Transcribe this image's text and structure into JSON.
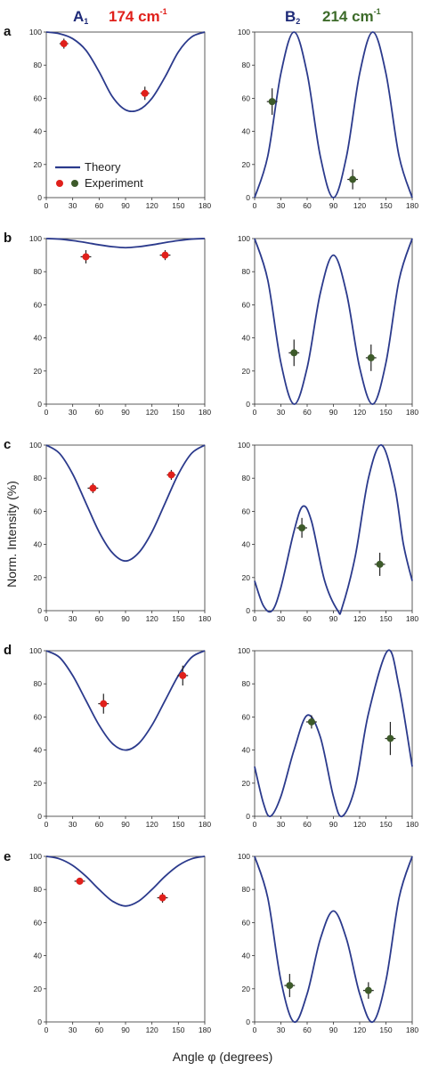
{
  "header": {
    "left_mode": "A",
    "left_sub": "1",
    "left_freq": "174 cm",
    "left_exp": "-1",
    "right_mode": "B",
    "right_sub": "2",
    "right_freq": "214 cm",
    "right_exp": "-1"
  },
  "ylabel": "Norm. Intensity (%)",
  "xlabel": "Angle φ (degrees)",
  "legend": {
    "theory": "Theory",
    "experiment": "Experiment"
  },
  "colors": {
    "theory": "#2b3a8c",
    "a1_points": "#e0201b",
    "b2_points": "#3d5a2a",
    "a1_header": "#e0201b",
    "b2_header": "#3d6b2a",
    "mode_header": "#1e2a78"
  },
  "chart_data": [
    {
      "panel": "a",
      "column": "A1",
      "type": "line+scatter",
      "xlim": [
        0,
        180
      ],
      "ylim": [
        0,
        100
      ],
      "xticks": [
        0,
        30,
        60,
        90,
        120,
        150,
        180
      ],
      "yticks": [
        0,
        20,
        40,
        60,
        80,
        100
      ],
      "theory": {
        "x": [
          0,
          15,
          30,
          45,
          60,
          75,
          90,
          105,
          120,
          135,
          150,
          165,
          180
        ],
        "y": [
          100,
          99,
          96,
          89,
          76,
          61,
          53,
          53,
          60,
          73,
          88,
          97,
          100
        ]
      },
      "experiment": [
        {
          "x": 20,
          "y": 93,
          "xerr": 5,
          "yerr": 3
        },
        {
          "x": 112,
          "y": 63,
          "xerr": 5,
          "yerr": 4
        }
      ]
    },
    {
      "panel": "a",
      "column": "B2",
      "type": "line+scatter",
      "xlim": [
        0,
        180
      ],
      "ylim": [
        0,
        100
      ],
      "xticks": [
        0,
        30,
        60,
        90,
        120,
        150,
        180
      ],
      "yticks": [
        0,
        20,
        40,
        60,
        80,
        100
      ],
      "theory": {
        "x": [
          0,
          15,
          30,
          45,
          60,
          75,
          90,
          105,
          120,
          135,
          150,
          165,
          180
        ],
        "y": [
          0,
          25,
          75,
          100,
          75,
          25,
          0,
          25,
          75,
          100,
          75,
          25,
          0
        ]
      },
      "experiment": [
        {
          "x": 20,
          "y": 58,
          "xerr": 6,
          "yerr": 8
        },
        {
          "x": 112,
          "y": 11,
          "xerr": 6,
          "yerr": 6
        }
      ]
    },
    {
      "panel": "b",
      "column": "A1",
      "type": "line+scatter",
      "xlim": [
        0,
        180
      ],
      "ylim": [
        0,
        100
      ],
      "xticks": [
        0,
        30,
        60,
        90,
        120,
        150,
        180
      ],
      "yticks": [
        0,
        20,
        40,
        60,
        80,
        100
      ],
      "theory": {
        "x": [
          0,
          15,
          30,
          45,
          60,
          75,
          90,
          105,
          120,
          135,
          150,
          165,
          180
        ],
        "y": [
          100,
          99.7,
          98.8,
          97.6,
          96.2,
          95.1,
          94.5,
          95.1,
          96.2,
          97.6,
          98.8,
          99.7,
          100
        ]
      },
      "experiment": [
        {
          "x": 45,
          "y": 89,
          "xerr": 6,
          "yerr": 4
        },
        {
          "x": 135,
          "y": 90,
          "xerr": 6,
          "yerr": 3
        }
      ]
    },
    {
      "panel": "b",
      "column": "B2",
      "type": "line+scatter",
      "xlim": [
        0,
        180
      ],
      "ylim": [
        0,
        100
      ],
      "xticks": [
        0,
        30,
        60,
        90,
        120,
        150,
        180
      ],
      "yticks": [
        0,
        20,
        40,
        60,
        80,
        100
      ],
      "theory": {
        "x": [
          0,
          15,
          30,
          45,
          60,
          75,
          90,
          105,
          120,
          135,
          150,
          165,
          180
        ],
        "y": [
          100,
          75,
          25,
          0,
          22,
          67,
          90,
          67,
          22,
          0,
          25,
          75,
          100
        ]
      },
      "experiment": [
        {
          "x": 45,
          "y": 31,
          "xerr": 6,
          "yerr": 8
        },
        {
          "x": 133,
          "y": 28,
          "xerr": 6,
          "yerr": 8
        }
      ]
    },
    {
      "panel": "c",
      "column": "A1",
      "type": "line+scatter",
      "xlim": [
        0,
        180
      ],
      "ylim": [
        0,
        100
      ],
      "xticks": [
        0,
        30,
        60,
        90,
        120,
        150,
        180
      ],
      "yticks": [
        0,
        20,
        40,
        60,
        80,
        100
      ],
      "theory": {
        "x": [
          0,
          15,
          30,
          45,
          60,
          75,
          90,
          105,
          120,
          135,
          150,
          165,
          180
        ],
        "y": [
          100,
          95,
          82.5,
          65,
          47.5,
          35,
          30,
          35,
          47.5,
          65,
          82.5,
          95,
          100
        ]
      },
      "experiment": [
        {
          "x": 53,
          "y": 74,
          "xerr": 6,
          "yerr": 3
        },
        {
          "x": 142,
          "y": 82,
          "xerr": 5,
          "yerr": 3
        }
      ]
    },
    {
      "panel": "c",
      "column": "B2",
      "type": "line+scatter",
      "xlim": [
        0,
        180
      ],
      "ylim": [
        0,
        100
      ],
      "xticks": [
        0,
        30,
        60,
        90,
        120,
        150,
        180
      ],
      "yticks": [
        0,
        20,
        40,
        60,
        80,
        100
      ],
      "theory": {
        "x": [
          0,
          10,
          20,
          30,
          45,
          55,
          65,
          80,
          95,
          100,
          115,
          130,
          145,
          160,
          170,
          180
        ],
        "y": [
          18,
          3,
          0,
          14,
          48,
          63,
          54,
          18,
          0,
          2,
          33,
          80,
          100,
          75,
          40,
          18
        ]
      },
      "experiment": [
        {
          "x": 54,
          "y": 50,
          "xerr": 6,
          "yerr": 6
        },
        {
          "x": 143,
          "y": 28,
          "xerr": 6,
          "yerr": 7
        }
      ]
    },
    {
      "panel": "d",
      "column": "A1",
      "type": "line+scatter",
      "xlim": [
        0,
        180
      ],
      "ylim": [
        0,
        100
      ],
      "xticks": [
        0,
        30,
        60,
        90,
        120,
        150,
        180
      ],
      "yticks": [
        0,
        20,
        40,
        60,
        80,
        100
      ],
      "theory": {
        "x": [
          0,
          15,
          30,
          45,
          60,
          75,
          90,
          105,
          120,
          135,
          150,
          165,
          180
        ],
        "y": [
          100,
          96,
          85,
          70,
          55,
          44,
          40,
          44,
          55,
          70,
          85,
          96,
          100
        ]
      },
      "experiment": [
        {
          "x": 65,
          "y": 68,
          "xerr": 6,
          "yerr": 6
        },
        {
          "x": 155,
          "y": 85,
          "xerr": 6,
          "yerr": 6
        }
      ]
    },
    {
      "panel": "d",
      "column": "B2",
      "type": "line+scatter",
      "xlim": [
        0,
        180
      ],
      "ylim": [
        0,
        100
      ],
      "xticks": [
        0,
        30,
        60,
        90,
        120,
        150,
        180
      ],
      "yticks": [
        0,
        20,
        40,
        60,
        80,
        100
      ],
      "theory": {
        "x": [
          0,
          10,
          18,
          30,
          45,
          60,
          75,
          90,
          100,
          115,
          130,
          152,
          165,
          180
        ],
        "y": [
          30,
          8,
          0,
          12,
          40,
          61,
          48,
          12,
          0,
          18,
          62,
          100,
          78,
          30
        ]
      },
      "experiment": [
        {
          "x": 65,
          "y": 57,
          "xerr": 6,
          "yerr": 4
        },
        {
          "x": 155,
          "y": 47,
          "xerr": 6,
          "yerr": 10
        }
      ]
    },
    {
      "panel": "e",
      "column": "A1",
      "type": "line+scatter",
      "xlim": [
        0,
        180
      ],
      "ylim": [
        0,
        100
      ],
      "xticks": [
        0,
        30,
        60,
        90,
        120,
        150,
        180
      ],
      "yticks": [
        0,
        20,
        40,
        60,
        80,
        100
      ],
      "theory": {
        "x": [
          0,
          15,
          30,
          45,
          60,
          75,
          90,
          105,
          120,
          135,
          150,
          165,
          180
        ],
        "y": [
          100,
          98.5,
          94.5,
          88,
          80,
          73,
          70,
          73,
          80,
          88,
          94.5,
          98.5,
          100
        ]
      },
      "experiment": [
        {
          "x": 38,
          "y": 85,
          "xerr": 6,
          "yerr": 2
        },
        {
          "x": 132,
          "y": 75,
          "xerr": 6,
          "yerr": 3
        }
      ]
    },
    {
      "panel": "e",
      "column": "B2",
      "type": "line+scatter",
      "xlim": [
        0,
        180
      ],
      "ylim": [
        0,
        100
      ],
      "xticks": [
        0,
        30,
        60,
        90,
        120,
        150,
        180
      ],
      "yticks": [
        0,
        20,
        40,
        60,
        80,
        100
      ],
      "theory": {
        "x": [
          0,
          15,
          30,
          45,
          60,
          75,
          90,
          105,
          120,
          135,
          150,
          165,
          180
        ],
        "y": [
          100,
          75,
          25,
          0,
          17,
          50,
          67,
          50,
          17,
          0,
          25,
          75,
          100
        ]
      },
      "experiment": [
        {
          "x": 40,
          "y": 22,
          "xerr": 6,
          "yerr": 7
        },
        {
          "x": 130,
          "y": 19,
          "xerr": 6,
          "yerr": 5
        }
      ]
    }
  ]
}
